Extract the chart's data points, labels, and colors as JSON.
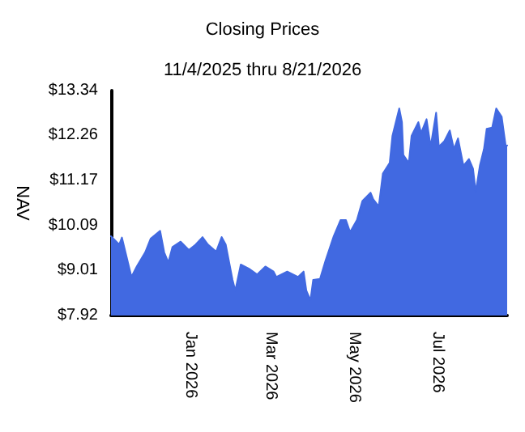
{
  "chart_data": {
    "type": "area",
    "title": "Closing Prices",
    "subtitle": "11/4/2025 thru 8/21/2026",
    "ylabel": "NAV",
    "x": [
      "2025-11-04",
      "2025-11-10",
      "2025-11-12",
      "2025-11-19",
      "2025-11-23",
      "2025-11-29",
      "2025-12-03",
      "2025-12-10",
      "2025-12-13",
      "2025-12-16",
      "2025-12-19",
      "2025-12-25",
      "2025-12-31",
      "2026-01-05",
      "2026-01-10",
      "2026-01-14",
      "2026-01-20",
      "2026-01-24",
      "2026-01-27",
      "2026-02-01",
      "2026-02-03",
      "2026-02-07",
      "2026-02-13",
      "2026-02-19",
      "2026-02-25",
      "2026-03-03",
      "2026-03-05",
      "2026-03-13",
      "2026-03-21",
      "2026-03-25",
      "2026-03-27",
      "2026-03-30",
      "2026-04-01",
      "2026-04-06",
      "2026-04-10",
      "2026-04-16",
      "2026-04-21",
      "2026-04-25",
      "2026-04-28",
      "2026-05-03",
      "2026-05-07",
      "2026-05-13",
      "2026-05-15",
      "2026-05-19",
      "2026-05-22",
      "2026-05-27",
      "2026-05-29",
      "2026-06-03",
      "2026-06-05",
      "2026-06-06",
      "2026-06-10",
      "2026-06-12",
      "2026-06-17",
      "2026-06-19",
      "2026-06-23",
      "2026-06-26",
      "2026-06-30",
      "2026-07-02",
      "2026-07-06",
      "2026-07-10",
      "2026-07-13",
      "2026-07-16",
      "2026-07-20",
      "2026-07-24",
      "2026-07-27",
      "2026-07-29",
      "2026-08-01",
      "2026-08-04",
      "2026-08-06",
      "2026-08-10",
      "2026-08-13",
      "2026-08-17",
      "2026-08-20",
      "2026-08-21"
    ],
    "series": [
      {
        "color": "#4169e1",
        "values": [
          9.83,
          9.63,
          9.8,
          8.85,
          9.11,
          9.44,
          9.77,
          9.96,
          9.44,
          9.2,
          9.57,
          9.7,
          9.5,
          9.63,
          9.81,
          9.63,
          9.46,
          9.81,
          9.63,
          8.78,
          8.52,
          9.15,
          9.05,
          8.91,
          9.1,
          8.98,
          8.85,
          8.98,
          8.85,
          8.98,
          8.52,
          8.29,
          8.78,
          8.8,
          9.24,
          9.83,
          10.22,
          10.22,
          9.93,
          10.22,
          10.68,
          10.88,
          10.72,
          10.55,
          11.34,
          11.6,
          12.25,
          12.91,
          12.58,
          11.79,
          11.6,
          12.25,
          12.58,
          12.32,
          12.65,
          11.99,
          12.81,
          11.99,
          12.12,
          12.38,
          11.93,
          12.19,
          11.53,
          11.69,
          11.46,
          10.9,
          11.53,
          11.93,
          12.42,
          12.45,
          12.91,
          12.71,
          11.99,
          12.02
        ]
      }
    ],
    "xlim": [
      "2025-11-04",
      "2026-08-21"
    ],
    "xticks": [
      {
        "value": "2026-01-01",
        "label": "Jan 2026"
      },
      {
        "value": "2026-03-01",
        "label": "Mar 2026"
      },
      {
        "value": "2026-05-01",
        "label": "May 2026"
      },
      {
        "value": "2026-07-01",
        "label": "Jul 2026"
      }
    ],
    "ylim": [
      7.92,
      13.34
    ],
    "yticks": [
      {
        "value": 7.92,
        "label": "$7.92"
      },
      {
        "value": 9.01,
        "label": "$9.01"
      },
      {
        "value": 10.09,
        "label": "$10.09"
      },
      {
        "value": 11.17,
        "label": "$11.17"
      },
      {
        "value": 12.26,
        "label": "$12.26"
      },
      {
        "value": 13.34,
        "label": "$13.34"
      }
    ],
    "grid": false,
    "marker": "none",
    "line_style": "solid"
  }
}
